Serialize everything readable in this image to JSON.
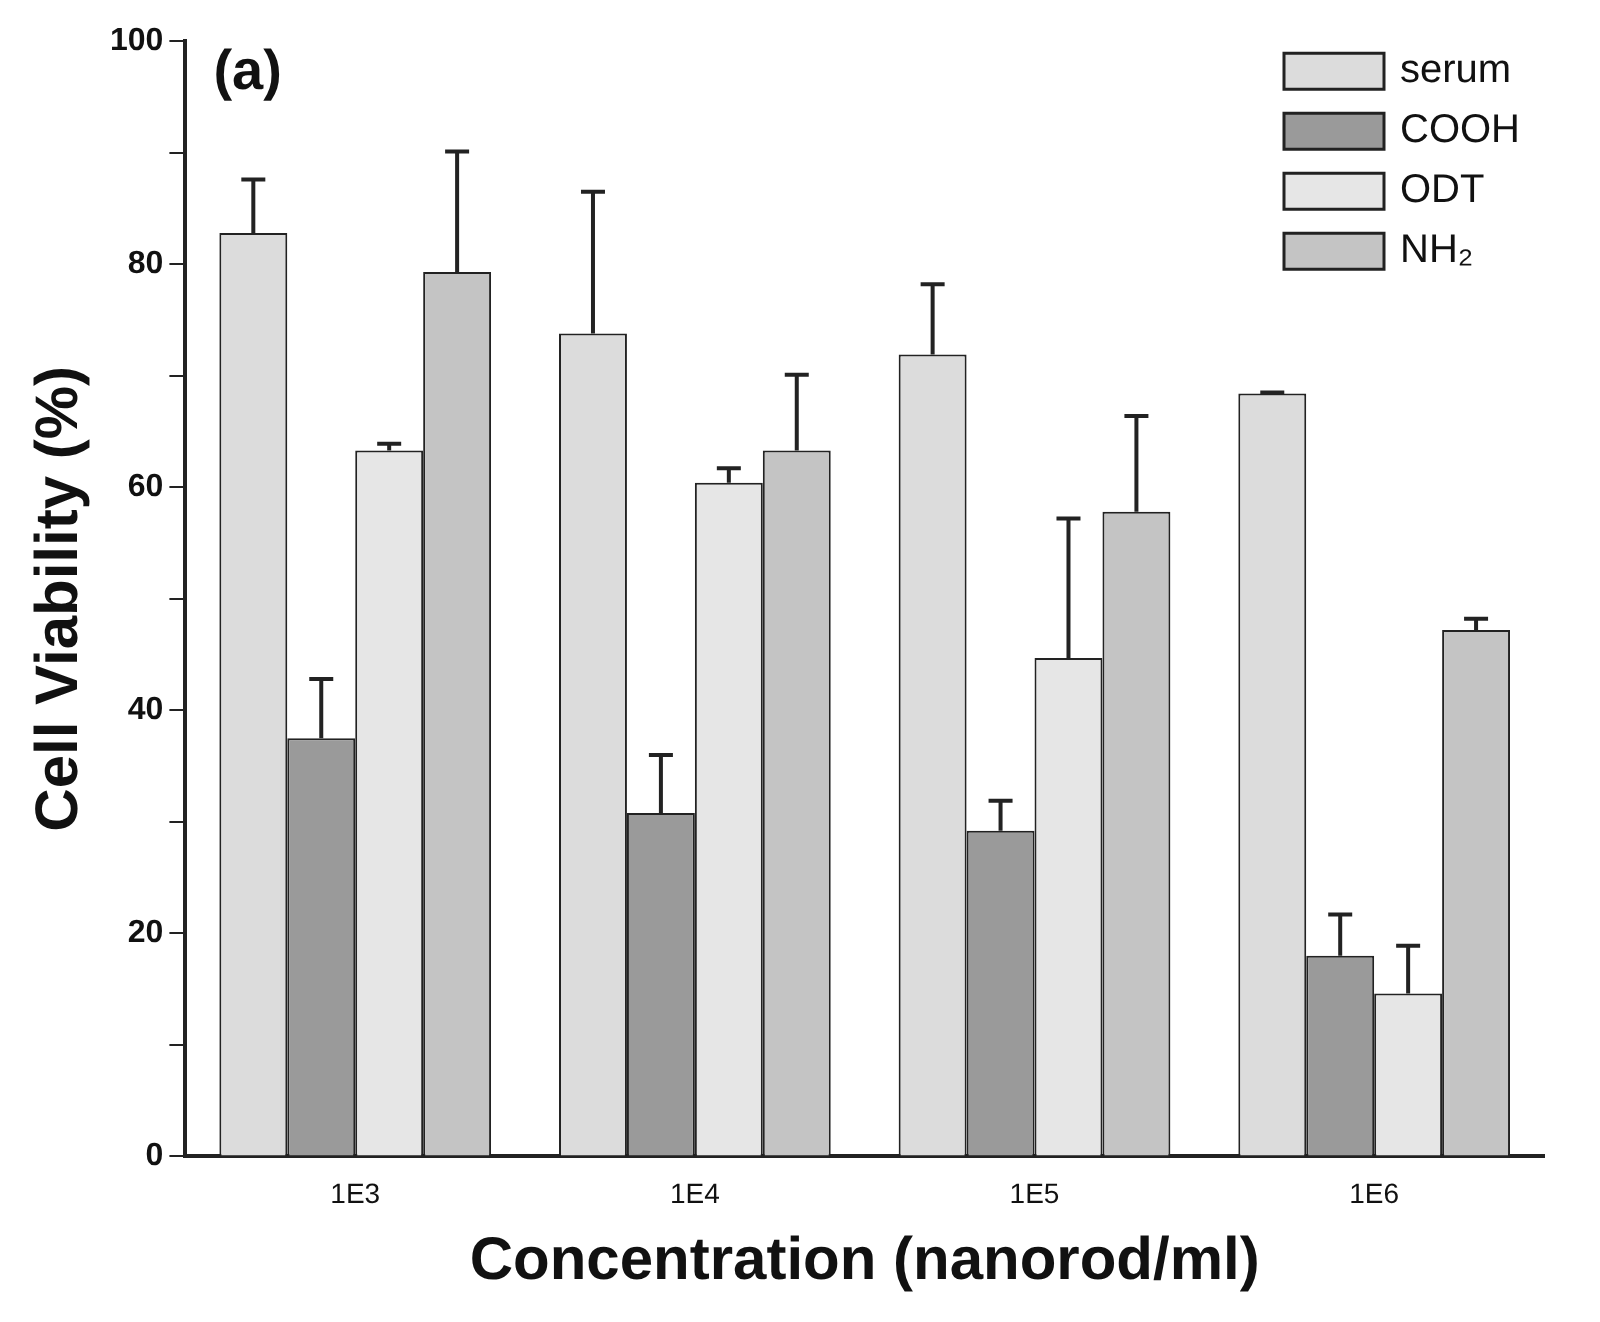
{
  "chart_data": {
    "type": "bar",
    "title": "(a)",
    "xlabel": "Concentration (nanorod/ml)",
    "ylabel": "Cell Viability (%)",
    "categories": [
      "1E3",
      "1E4",
      "1E5",
      "1E6"
    ],
    "series": [
      {
        "name": "serum",
        "color": "#dcdcdc",
        "values": [
          82.8,
          73.8,
          71.9,
          68.4
        ],
        "errors": [
          [
            82.8,
            87.6
          ],
          [
            73.8,
            86.5
          ],
          [
            71.9,
            78.2
          ],
          [
            68.4,
            68.5
          ]
        ]
      },
      {
        "name": "COOH",
        "color": "#9a9a9a",
        "values": [
          37.5,
          30.8,
          29.2,
          18.0
        ],
        "errors": [
          [
            37.5,
            42.8
          ],
          [
            30.8,
            36.0
          ],
          [
            29.2,
            31.9
          ],
          [
            18.0,
            21.7
          ]
        ]
      },
      {
        "name": "ODT",
        "color": "#e6e6e6",
        "values": [
          63.3,
          60.4,
          44.7,
          14.6
        ],
        "errors": [
          [
            63.3,
            63.9
          ],
          [
            60.4,
            61.7
          ],
          [
            44.7,
            57.2
          ],
          [
            14.6,
            18.9
          ]
        ]
      },
      {
        "name": "NH₂",
        "color": "#c4c4c4",
        "values": [
          79.3,
          63.3,
          57.8,
          47.2
        ],
        "errors": [
          [
            79.3,
            90.1
          ],
          [
            63.3,
            70.1
          ],
          [
            57.8,
            66.4
          ],
          [
            47.2,
            48.2
          ]
        ]
      }
    ],
    "ylim": [
      0,
      100
    ],
    "yticks": [
      0,
      {
        "value": 10,
        "label": null
      },
      20,
      {
        "value": 30,
        "label": null
      },
      40,
      {
        "value": 50,
        "label": null
      },
      60,
      {
        "value": 70,
        "label": null
      },
      80,
      {
        "value": 90,
        "label": null
      },
      100
    ],
    "grid": false,
    "legend": "top right"
  }
}
